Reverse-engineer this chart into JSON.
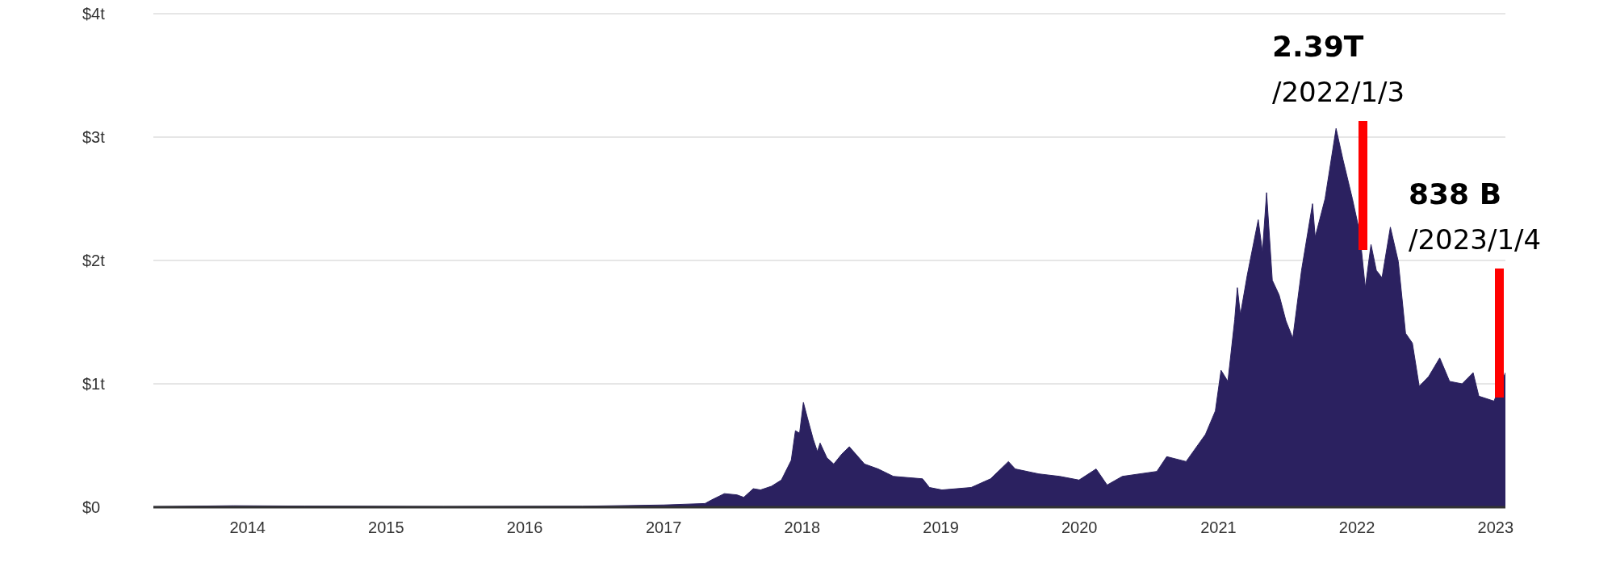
{
  "chart_data": {
    "type": "area",
    "x": [
      "2013-04-28",
      "2013-11-25",
      "2014-06-01",
      "2015-06-01",
      "2016-06-01",
      "2017-01-01",
      "2017-04-20",
      "2017-05-08",
      "2017-06-10",
      "2017-07-13",
      "2017-07-31",
      "2017-08-25",
      "2017-09-13",
      "2017-10-12",
      "2017-11-07",
      "2017-12-03",
      "2017-12-14",
      "2017-12-25",
      "2018-01-04",
      "2018-01-15",
      "2018-01-30",
      "2018-02-10",
      "2018-02-17",
      "2018-03-07",
      "2018-03-25",
      "2018-04-15",
      "2018-05-05",
      "2018-06-14",
      "2018-07-20",
      "2018-08-29",
      "2018-11-14",
      "2018-12-02",
      "2019-01-04",
      "2019-03-22",
      "2019-05-12",
      "2019-06-28",
      "2019-07-16",
      "2019-09-16",
      "2019-11-10",
      "2019-12-31",
      "2020-02-14",
      "2020-03-14",
      "2020-04-23",
      "2020-07-23",
      "2020-08-18",
      "2020-10-08",
      "2020-11-28",
      "2020-12-24",
      "2021-01-08",
      "2021-01-26",
      "2021-02-13",
      "2021-02-20",
      "2021-02-28",
      "2021-03-18",
      "2021-04-16",
      "2021-04-27",
      "2021-05-08",
      "2021-05-23",
      "2021-06-10",
      "2021-06-28",
      "2021-07-16",
      "2021-08-08",
      "2021-09-06",
      "2021-09-13",
      "2021-10-09",
      "2021-11-07",
      "2021-11-25",
      "2021-12-20",
      "2022-01-08",
      "2022-01-23",
      "2022-02-07",
      "2022-02-21",
      "2022-03-08",
      "2022-03-30",
      "2022-04-20",
      "2022-05-09",
      "2022-05-27",
      "2022-06-14",
      "2022-07-09",
      "2022-08-07",
      "2022-09-02",
      "2022-10-05",
      "2022-11-03",
      "2022-11-18",
      "2022-12-28",
      "2023-01-27"
    ],
    "series": [
      {
        "color": "#2b2160",
        "values": [
          0.005,
          0.012,
          0.009,
          0.006,
          0.008,
          0.018,
          0.03,
          0.06,
          0.11,
          0.1,
          0.08,
          0.15,
          0.14,
          0.17,
          0.22,
          0.38,
          0.62,
          0.6,
          0.85,
          0.72,
          0.55,
          0.45,
          0.52,
          0.4,
          0.35,
          0.43,
          0.49,
          0.35,
          0.31,
          0.25,
          0.23,
          0.16,
          0.14,
          0.16,
          0.23,
          0.37,
          0.31,
          0.27,
          0.25,
          0.22,
          0.31,
          0.18,
          0.25,
          0.29,
          0.41,
          0.37,
          0.59,
          0.78,
          1.11,
          1.02,
          1.52,
          1.78,
          1.56,
          1.88,
          2.33,
          2.07,
          2.55,
          1.84,
          1.72,
          1.51,
          1.37,
          1.92,
          2.46,
          2.19,
          2.5,
          3.07,
          2.82,
          2.5,
          2.23,
          1.78,
          2.13,
          1.92,
          1.86,
          2.27,
          1.99,
          1.41,
          1.33,
          0.98,
          1.06,
          1.21,
          1.02,
          1.0,
          1.09,
          0.9,
          0.86,
          1.09
        ]
      }
    ],
    "xlim": [
      "2013-04-28",
      "2023-01-27"
    ],
    "xticks": [
      {
        "value": "2014",
        "label": "2014"
      },
      {
        "value": "2015",
        "label": "2015"
      },
      {
        "value": "2016",
        "label": "2016"
      },
      {
        "value": "2017",
        "label": "2017"
      },
      {
        "value": "2018",
        "label": "2018"
      },
      {
        "value": "2019",
        "label": "2019"
      },
      {
        "value": "2020",
        "label": "2020"
      },
      {
        "value": "2021",
        "label": "2021"
      },
      {
        "value": "2022",
        "label": "2022"
      },
      {
        "value": "2023",
        "label": "2023"
      }
    ],
    "ylim": [
      0,
      4
    ],
    "yticks": [
      {
        "value": 0,
        "label": "$0"
      },
      {
        "value": 1,
        "label": "$1t"
      },
      {
        "value": 2,
        "label": "$2t"
      },
      {
        "value": 3,
        "label": "$3t"
      },
      {
        "value": 4,
        "label": "$4t"
      }
    ],
    "grid": "y",
    "legend": false,
    "annotations": [
      "2.39T\n/2022/1/3",
      "838 B\n/2023/1/4"
    ]
  }
}
